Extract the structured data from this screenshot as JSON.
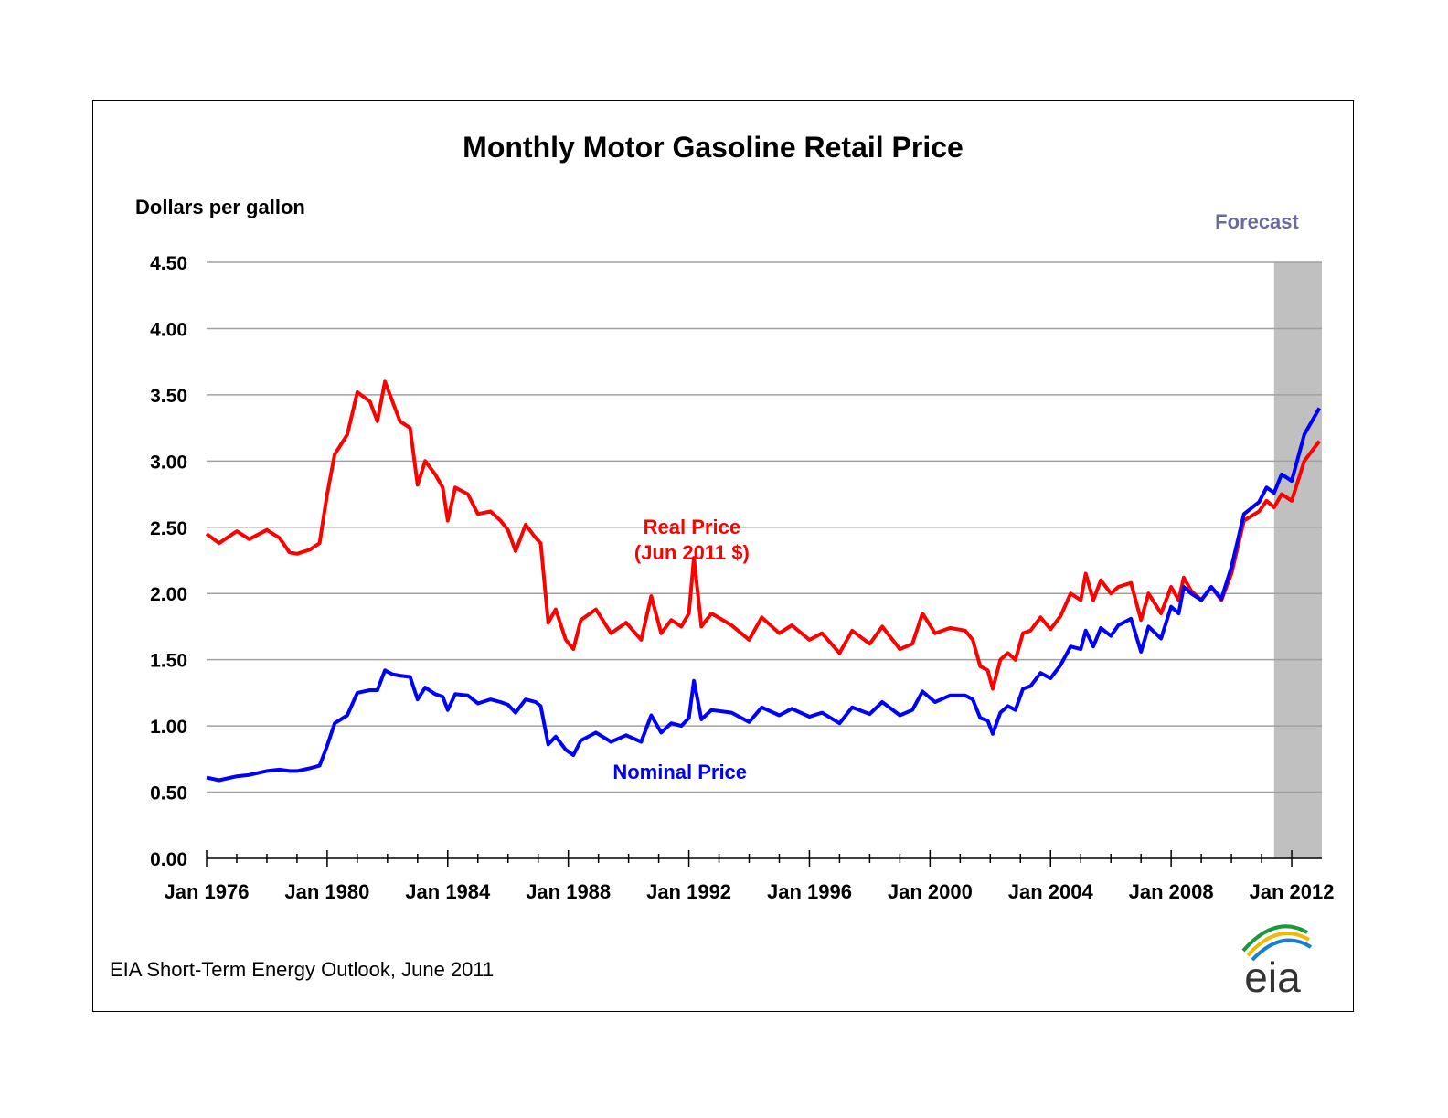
{
  "chart_data": {
    "type": "line",
    "title": "Monthly Motor Gasoline Retail Price",
    "ylabel": "Dollars per gallon",
    "ylim": [
      0,
      4.5
    ],
    "y_ticks": [
      "0.00",
      "0.50",
      "1.00",
      "1.50",
      "2.00",
      "2.50",
      "3.00",
      "3.50",
      "4.00",
      "4.50"
    ],
    "x_range": [
      "Jan 1976",
      "Dec 2012"
    ],
    "x_tick_labels": [
      "Jan 1976",
      "Jan 1980",
      "Jan 1984",
      "Jan 1988",
      "Jan 1992",
      "Jan 1996",
      "Jan 2000",
      "Jan 2004",
      "Jan 2008",
      "Jan 2012"
    ],
    "grid": true,
    "forecast": {
      "label": "Forecast",
      "start": "2011-06",
      "end": "2012-12",
      "color": "#c0c0c0",
      "label_color": "#6a6a9e"
    },
    "series": [
      {
        "name": "Real Price\n(Jun 2011 $)",
        "label_lines": [
          "Real Price",
          "(Jun 2011 $)"
        ],
        "color": "#ff0000",
        "points": [
          [
            "1976-01",
            2.45
          ],
          [
            "1976-06",
            2.38
          ],
          [
            "1977-01",
            2.47
          ],
          [
            "1977-06",
            2.41
          ],
          [
            "1978-01",
            2.48
          ],
          [
            "1978-06",
            2.42
          ],
          [
            "1978-10",
            2.31
          ],
          [
            "1979-01",
            2.3
          ],
          [
            "1979-06",
            2.33
          ],
          [
            "1979-10",
            2.38
          ],
          [
            "1980-01",
            2.75
          ],
          [
            "1980-04",
            3.05
          ],
          [
            "1980-09",
            3.2
          ],
          [
            "1981-01",
            3.52
          ],
          [
            "1981-06",
            3.45
          ],
          [
            "1981-09",
            3.3
          ],
          [
            "1981-12",
            3.6
          ],
          [
            "1982-03",
            3.45
          ],
          [
            "1982-06",
            3.3
          ],
          [
            "1982-10",
            3.25
          ],
          [
            "1983-01",
            2.82
          ],
          [
            "1983-04",
            3.0
          ],
          [
            "1983-08",
            2.9
          ],
          [
            "1983-11",
            2.8
          ],
          [
            "1984-01",
            2.55
          ],
          [
            "1984-04",
            2.8
          ],
          [
            "1984-09",
            2.75
          ],
          [
            "1985-01",
            2.6
          ],
          [
            "1985-06",
            2.62
          ],
          [
            "1985-10",
            2.55
          ],
          [
            "1986-01",
            2.48
          ],
          [
            "1986-04",
            2.32
          ],
          [
            "1986-08",
            2.52
          ],
          [
            "1986-12",
            2.42
          ],
          [
            "1987-02",
            2.38
          ],
          [
            "1987-05",
            1.78
          ],
          [
            "1987-08",
            1.88
          ],
          [
            "1987-12",
            1.65
          ],
          [
            "1988-03",
            1.58
          ],
          [
            "1988-06",
            1.8
          ],
          [
            "1988-12",
            1.88
          ],
          [
            "1989-06",
            1.7
          ],
          [
            "1989-12",
            1.78
          ],
          [
            "1990-06",
            1.65
          ],
          [
            "1990-10",
            1.98
          ],
          [
            "1991-02",
            1.7
          ],
          [
            "1991-06",
            1.8
          ],
          [
            "1991-10",
            1.75
          ],
          [
            "1992-01",
            1.85
          ],
          [
            "1992-03",
            2.27
          ],
          [
            "1992-06",
            1.75
          ],
          [
            "1992-10",
            1.85
          ],
          [
            "1993-06",
            1.76
          ],
          [
            "1994-01",
            1.65
          ],
          [
            "1994-06",
            1.82
          ],
          [
            "1995-01",
            1.7
          ],
          [
            "1995-06",
            1.76
          ],
          [
            "1996-01",
            1.65
          ],
          [
            "1996-06",
            1.7
          ],
          [
            "1997-01",
            1.55
          ],
          [
            "1997-06",
            1.72
          ],
          [
            "1998-01",
            1.62
          ],
          [
            "1998-06",
            1.75
          ],
          [
            "1999-01",
            1.58
          ],
          [
            "1999-06",
            1.62
          ],
          [
            "1999-10",
            1.85
          ],
          [
            "2000-03",
            1.7
          ],
          [
            "2000-09",
            1.74
          ],
          [
            "2001-03",
            1.72
          ],
          [
            "2001-06",
            1.65
          ],
          [
            "2001-09",
            1.45
          ],
          [
            "2001-12",
            1.42
          ],
          [
            "2002-02",
            1.28
          ],
          [
            "2002-05",
            1.5
          ],
          [
            "2002-08",
            1.55
          ],
          [
            "2002-11",
            1.5
          ],
          [
            "2003-02",
            1.7
          ],
          [
            "2003-05",
            1.72
          ],
          [
            "2003-09",
            1.82
          ],
          [
            "2004-01",
            1.73
          ],
          [
            "2004-05",
            1.83
          ],
          [
            "2004-09",
            2.0
          ],
          [
            "2005-01",
            1.95
          ],
          [
            "2005-03",
            2.15
          ],
          [
            "2005-06",
            1.95
          ],
          [
            "2005-09",
            2.1
          ],
          [
            "2006-01",
            2.0
          ],
          [
            "2006-04",
            2.05
          ],
          [
            "2006-09",
            2.08
          ],
          [
            "2007-01",
            1.8
          ],
          [
            "2007-04",
            2.0
          ],
          [
            "2007-09",
            1.85
          ],
          [
            "2008-01",
            2.05
          ],
          [
            "2008-04",
            1.95
          ],
          [
            "2008-06",
            2.12
          ],
          [
            "2008-09",
            2.02
          ],
          [
            "2009-01",
            1.95
          ],
          [
            "2009-05",
            2.05
          ],
          [
            "2009-09",
            1.95
          ],
          [
            "2010-01",
            2.15
          ],
          [
            "2010-06",
            2.55
          ],
          [
            "2010-12",
            2.62
          ],
          [
            "2011-03",
            2.7
          ],
          [
            "2011-06",
            2.65
          ],
          [
            "2011-09",
            2.75
          ],
          [
            "2012-01",
            2.7
          ],
          [
            "2012-06",
            3.0
          ],
          [
            "2012-12",
            3.15
          ]
        ]
      },
      {
        "name": "Nominal Price",
        "label_lines": [
          "Nominal Price"
        ],
        "color": "#0000ff",
        "points": [
          [
            "1976-01",
            0.61
          ],
          [
            "1976-06",
            0.59
          ],
          [
            "1977-01",
            0.62
          ],
          [
            "1977-06",
            0.63
          ],
          [
            "1978-01",
            0.66
          ],
          [
            "1978-06",
            0.67
          ],
          [
            "1978-10",
            0.66
          ],
          [
            "1979-01",
            0.66
          ],
          [
            "1979-06",
            0.68
          ],
          [
            "1979-10",
            0.7
          ],
          [
            "1980-01",
            0.85
          ],
          [
            "1980-04",
            1.02
          ],
          [
            "1980-09",
            1.08
          ],
          [
            "1981-01",
            1.25
          ],
          [
            "1981-06",
            1.27
          ],
          [
            "1981-09",
            1.27
          ],
          [
            "1981-12",
            1.42
          ],
          [
            "1982-03",
            1.39
          ],
          [
            "1982-06",
            1.38
          ],
          [
            "1982-10",
            1.37
          ],
          [
            "1983-01",
            1.2
          ],
          [
            "1983-04",
            1.29
          ],
          [
            "1983-08",
            1.24
          ],
          [
            "1983-11",
            1.22
          ],
          [
            "1984-01",
            1.12
          ],
          [
            "1984-04",
            1.24
          ],
          [
            "1984-09",
            1.23
          ],
          [
            "1985-01",
            1.17
          ],
          [
            "1985-06",
            1.2
          ],
          [
            "1985-10",
            1.18
          ],
          [
            "1986-01",
            1.16
          ],
          [
            "1986-04",
            1.1
          ],
          [
            "1986-08",
            1.2
          ],
          [
            "1986-12",
            1.18
          ],
          [
            "1987-02",
            1.15
          ],
          [
            "1987-05",
            0.86
          ],
          [
            "1987-08",
            0.92
          ],
          [
            "1987-12",
            0.82
          ],
          [
            "1988-03",
            0.78
          ],
          [
            "1988-06",
            0.89
          ],
          [
            "1988-12",
            0.95
          ],
          [
            "1989-06",
            0.88
          ],
          [
            "1989-12",
            0.93
          ],
          [
            "1990-06",
            0.88
          ],
          [
            "1990-10",
            1.08
          ],
          [
            "1991-02",
            0.95
          ],
          [
            "1991-06",
            1.02
          ],
          [
            "1991-10",
            1.0
          ],
          [
            "1992-01",
            1.06
          ],
          [
            "1992-03",
            1.34
          ],
          [
            "1992-06",
            1.05
          ],
          [
            "1992-10",
            1.12
          ],
          [
            "1993-06",
            1.1
          ],
          [
            "1994-01",
            1.03
          ],
          [
            "1994-06",
            1.14
          ],
          [
            "1995-01",
            1.08
          ],
          [
            "1995-06",
            1.13
          ],
          [
            "1996-01",
            1.07
          ],
          [
            "1996-06",
            1.1
          ],
          [
            "1997-01",
            1.02
          ],
          [
            "1997-06",
            1.14
          ],
          [
            "1998-01",
            1.09
          ],
          [
            "1998-06",
            1.18
          ],
          [
            "1999-01",
            1.08
          ],
          [
            "1999-06",
            1.12
          ],
          [
            "1999-10",
            1.26
          ],
          [
            "2000-03",
            1.18
          ],
          [
            "2000-09",
            1.23
          ],
          [
            "2001-03",
            1.23
          ],
          [
            "2001-06",
            1.2
          ],
          [
            "2001-09",
            1.06
          ],
          [
            "2001-12",
            1.04
          ],
          [
            "2002-02",
            0.94
          ],
          [
            "2002-05",
            1.1
          ],
          [
            "2002-08",
            1.15
          ],
          [
            "2002-11",
            1.12
          ],
          [
            "2003-02",
            1.28
          ],
          [
            "2003-05",
            1.3
          ],
          [
            "2003-09",
            1.4
          ],
          [
            "2004-01",
            1.36
          ],
          [
            "2004-05",
            1.46
          ],
          [
            "2004-09",
            1.6
          ],
          [
            "2005-01",
            1.58
          ],
          [
            "2005-03",
            1.72
          ],
          [
            "2005-06",
            1.6
          ],
          [
            "2005-09",
            1.74
          ],
          [
            "2006-01",
            1.68
          ],
          [
            "2006-04",
            1.76
          ],
          [
            "2006-09",
            1.81
          ],
          [
            "2007-01",
            1.56
          ],
          [
            "2007-04",
            1.75
          ],
          [
            "2007-09",
            1.66
          ],
          [
            "2008-01",
            1.9
          ],
          [
            "2008-04",
            1.85
          ],
          [
            "2008-06",
            2.05
          ],
          [
            "2008-09",
            2.0
          ],
          [
            "2009-01",
            1.95
          ],
          [
            "2009-05",
            2.05
          ],
          [
            "2009-09",
            1.96
          ],
          [
            "2010-01",
            2.2
          ],
          [
            "2010-06",
            2.6
          ],
          [
            "2010-12",
            2.69
          ],
          [
            "2011-03",
            2.8
          ],
          [
            "2011-06",
            2.76
          ],
          [
            "2011-09",
            2.9
          ],
          [
            "2012-01",
            2.85
          ],
          [
            "2012-06",
            3.2
          ],
          [
            "2012-12",
            3.4
          ]
        ]
      }
    ]
  },
  "footer": {
    "source": "EIA Short-Term Energy Outlook, June 2011"
  },
  "logo": {
    "text": "eia",
    "icon": "eia-logo-icon"
  }
}
